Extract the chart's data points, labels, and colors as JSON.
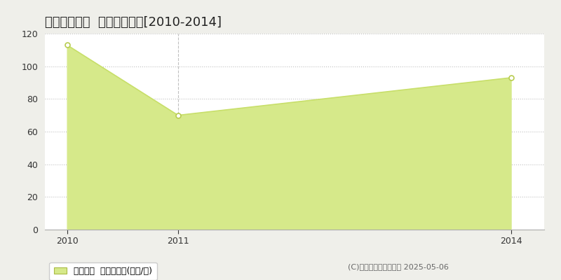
{
  "title": "刈谷市高松町  住宅価格推移[2010-2014]",
  "x_values": [
    2010,
    2011,
    2014
  ],
  "y_values": [
    113,
    70,
    93
  ],
  "ylim": [
    0,
    120
  ],
  "yticks": [
    0,
    20,
    40,
    60,
    80,
    100,
    120
  ],
  "xticks": [
    2010,
    2011,
    2014
  ],
  "xlim": [
    2009.8,
    2014.3
  ],
  "line_color": "#c8df6a",
  "fill_color": "#d6e98a",
  "marker_color": "#ffffff",
  "marker_edge_color": "#b8cc50",
  "bg_color": "#efefea",
  "plot_bg_color": "#ffffff",
  "grid_color_dotted": "#c0c0c0",
  "grid_color_dashed": "#c0c0c0",
  "legend_label": "住宅価格  平均坪単価(万円/坪)",
  "copyright_text": "(C)土地価格ドットコム 2025-05-06",
  "title_fontsize": 13,
  "tick_fontsize": 9,
  "legend_fontsize": 9,
  "copyright_fontsize": 8
}
